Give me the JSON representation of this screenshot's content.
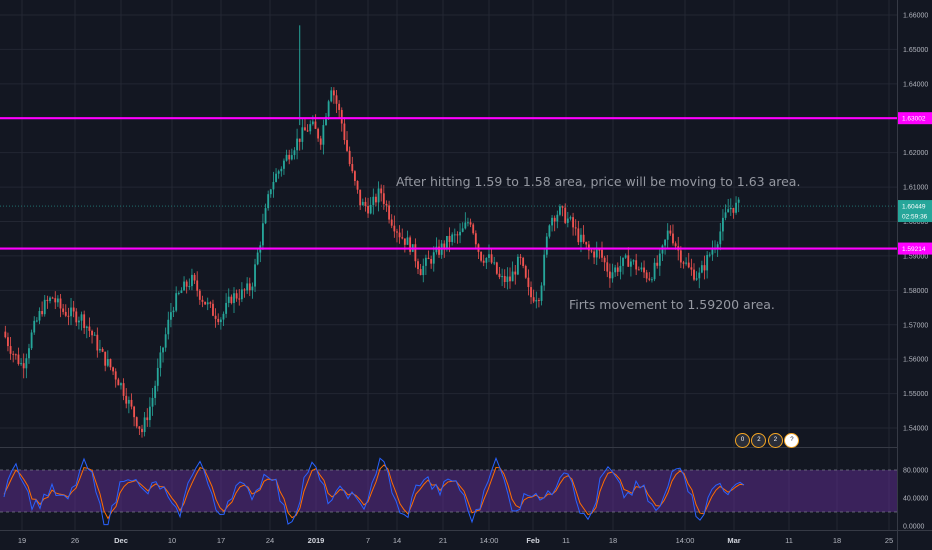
{
  "chart_data": [
    {
      "type": "candlestick",
      "symbol_panel": "price",
      "y_range": [
        1.535,
        1.665
      ],
      "y_ticks": [
        "1.66000",
        "1.65000",
        "1.64000",
        "1.63000",
        "1.62000",
        "1.61000",
        "1.60000",
        "1.59000",
        "1.58000",
        "1.57000",
        "1.56000",
        "1.55000",
        "1.54000"
      ],
      "x_ticks": [
        "19",
        "26",
        "Dec",
        "10",
        "17",
        "24",
        "2019",
        "7",
        "14",
        "21",
        "14:00",
        "Feb",
        "11",
        "18",
        "14:00",
        "Mar",
        "11",
        "18",
        "25"
      ],
      "bold_ticks": [
        "Dec",
        "2019",
        "Feb",
        "Mar"
      ],
      "colors": {
        "up": "#26a69a",
        "down": "#ef5350",
        "level": "#ff00ff",
        "grid": "#232733"
      },
      "price_path": [
        [
          0,
          1.568
        ],
        [
          1,
          1.562
        ],
        [
          2,
          1.558
        ],
        [
          3,
          1.568
        ],
        [
          4,
          1.575
        ],
        [
          5,
          1.578
        ],
        [
          6,
          1.574
        ],
        [
          7,
          1.573
        ],
        [
          8,
          1.572
        ],
        [
          9,
          1.567
        ],
        [
          10,
          1.561
        ],
        [
          11,
          1.557
        ],
        [
          12,
          1.552
        ],
        [
          13,
          1.545
        ],
        [
          14,
          1.539
        ],
        [
          15,
          1.548
        ],
        [
          16,
          1.562
        ],
        [
          17,
          1.575
        ],
        [
          18,
          1.58
        ],
        [
          19,
          1.583
        ],
        [
          20,
          1.578
        ],
        [
          21,
          1.574
        ],
        [
          22,
          1.572
        ],
        [
          23,
          1.578
        ],
        [
          24,
          1.579
        ],
        [
          25,
          1.581
        ],
        [
          26,
          1.596
        ],
        [
          27,
          1.611
        ],
        [
          28,
          1.616
        ],
        [
          29,
          1.621
        ],
        [
          30,
          1.625
        ],
        [
          31,
          1.628
        ],
        [
          32,
          1.624
        ],
        [
          33,
          1.64
        ],
        [
          34,
          1.63
        ],
        [
          35,
          1.615
        ],
        [
          36,
          1.605
        ],
        [
          37,
          1.604
        ],
        [
          38,
          1.609
        ],
        [
          39,
          1.601
        ],
        [
          40,
          1.596
        ],
        [
          41,
          1.593
        ],
        [
          42,
          1.586
        ],
        [
          43,
          1.589
        ],
        [
          44,
          1.592
        ],
        [
          45,
          1.595
        ],
        [
          46,
          1.596
        ],
        [
          47,
          1.601
        ],
        [
          48,
          1.59
        ],
        [
          49,
          1.589
        ],
        [
          50,
          1.583
        ],
        [
          51,
          1.583
        ],
        [
          52,
          1.589
        ],
        [
          53,
          1.578
        ],
        [
          54,
          1.579
        ],
        [
          55,
          1.601
        ],
        [
          56,
          1.603
        ],
        [
          57,
          1.6
        ],
        [
          58,
          1.595
        ],
        [
          59,
          1.591
        ],
        [
          60,
          1.591
        ],
        [
          61,
          1.585
        ],
        [
          62,
          1.587
        ],
        [
          63,
          1.589
        ],
        [
          64,
          1.586
        ],
        [
          65,
          1.584
        ],
        [
          66,
          1.588
        ],
        [
          67,
          1.598
        ],
        [
          68,
          1.591
        ],
        [
          69,
          1.586
        ],
        [
          70,
          1.584
        ],
        [
          71,
          1.59
        ],
        [
          72,
          1.596
        ],
        [
          73,
          1.604
        ],
        [
          74,
          1.6045
        ]
      ],
      "levels": [
        {
          "label": "1.63002",
          "value": 1.63002
        },
        {
          "label": "1.59214",
          "value": 1.59214
        }
      ],
      "last_price": {
        "label": "1.60449",
        "value": 1.60449,
        "countdown": "02:59:36"
      },
      "annotations": [
        "After hitting 1.59 to 1.58 area, price will be moving to 1.63 area.",
        "Firts movement to 1.59200 area."
      ]
    },
    {
      "type": "line",
      "indicator": "stochastic",
      "y_ticks": [
        "80.0000",
        "40.0000",
        "0.0000"
      ],
      "y_range": [
        0,
        100
      ],
      "band": [
        20,
        80
      ],
      "colors": {
        "k": "#2962ff",
        "d": "#ff6d00",
        "band": "#5b2b8a"
      }
    }
  ],
  "event_badges": [
    "0",
    "2",
    "2",
    "?"
  ]
}
